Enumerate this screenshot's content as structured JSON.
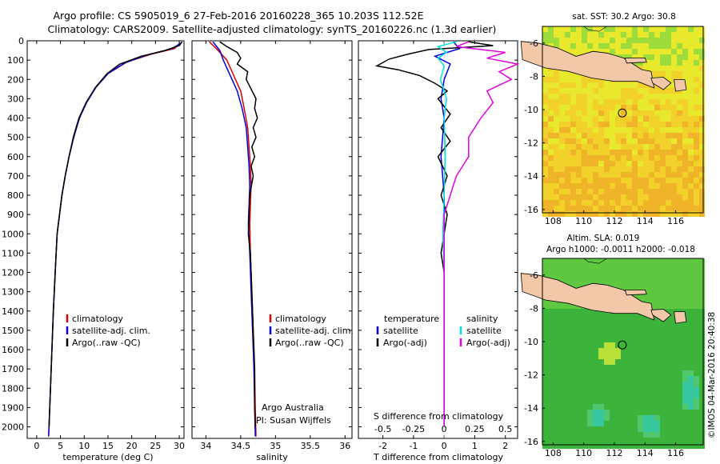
{
  "header": {
    "line1": "Argo profile: CS 5905019_6 27-Feb-2016 20160228_365 10.203S 112.52E",
    "line2": "Climatology: CARS2009. Satellite-adjusted climatology: synTS_20160226.nc (1.3d earlier)"
  },
  "side_credit": "©IMOS 04-Mar-2016 20:40:38",
  "colors": {
    "climatology": "#e00000",
    "satellite": "#0000e0",
    "argo": "#000000",
    "salinity_sat": "#00e0e0",
    "salinity_argo": "#e000e0",
    "land": "#f2c8a8"
  },
  "chart_data": [
    {
      "type": "line",
      "name": "temperature-profile",
      "xlabel": "temperature (deg C)",
      "ylabel": "",
      "xlim": [
        -2,
        31
      ],
      "ylim": [
        2060,
        0
      ],
      "xticks": [
        "0",
        "5",
        "10",
        "15",
        "20",
        "25",
        "30"
      ],
      "yticks": [
        "0",
        "100",
        "200",
        "300",
        "400",
        "500",
        "600",
        "700",
        "800",
        "900",
        "1000",
        "1100",
        "1200",
        "1300",
        "1400",
        "1500",
        "1600",
        "1700",
        "1800",
        "1900",
        "2000"
      ],
      "legend": [
        "climatology",
        "satellite-adj. clim.",
        "Argo(..raw -QC)"
      ],
      "series": [
        {
          "name": "climatology",
          "color": "#e00000",
          "points": [
            [
              30.2,
              10
            ],
            [
              29,
              40
            ],
            [
              24,
              70
            ],
            [
              19,
              110
            ],
            [
              15,
              170
            ],
            [
              12.5,
              240
            ],
            [
              10.5,
              320
            ],
            [
              9,
              400
            ],
            [
              7.8,
              500
            ],
            [
              6.8,
              600
            ],
            [
              6,
              700
            ],
            [
              5.3,
              800
            ],
            [
              4.8,
              900
            ],
            [
              4.3,
              1000
            ],
            [
              3.9,
              1200
            ],
            [
              3.5,
              1400
            ],
            [
              3.2,
              1600
            ],
            [
              2.9,
              1800
            ],
            [
              2.6,
              2000
            ],
            [
              2.5,
              2050
            ]
          ]
        },
        {
          "name": "satellite-adj. clim.",
          "color": "#0000e0",
          "points": [
            [
              30.5,
              10
            ],
            [
              28.5,
              40
            ],
            [
              23,
              75
            ],
            [
              18.5,
              115
            ],
            [
              15,
              170
            ],
            [
              12.5,
              240
            ],
            [
              10.5,
              320
            ],
            [
              9,
              400
            ],
            [
              7.8,
              500
            ],
            [
              6.8,
              600
            ],
            [
              6,
              700
            ],
            [
              5.3,
              800
            ],
            [
              4.8,
              900
            ],
            [
              4.3,
              1000
            ],
            [
              3.9,
              1200
            ],
            [
              3.5,
              1400
            ],
            [
              3.2,
              1600
            ],
            [
              2.9,
              1800
            ],
            [
              2.6,
              2000
            ],
            [
              2.5,
              2050
            ]
          ]
        },
        {
          "name": "Argo(..raw -QC)",
          "color": "#000000",
          "points": [
            [
              30.6,
              5
            ],
            [
              30,
              25
            ],
            [
              27,
              50
            ],
            [
              22,
              80
            ],
            [
              17.5,
              120
            ],
            [
              14.8,
              170
            ],
            [
              12.4,
              240
            ],
            [
              10.4,
              320
            ],
            [
              8.9,
              400
            ],
            [
              7.7,
              500
            ],
            [
              6.8,
              600
            ],
            [
              6,
              700
            ],
            [
              5.3,
              800
            ],
            [
              4.8,
              900
            ],
            [
              4.3,
              1000
            ],
            [
              3.9,
              1200
            ],
            [
              3.5,
              1400
            ],
            [
              3.2,
              1600
            ],
            [
              2.9,
              1800
            ],
            [
              2.6,
              2000
            ]
          ]
        }
      ]
    },
    {
      "type": "line",
      "name": "salinity-profile",
      "xlabel": "salinity",
      "xlim": [
        33.8,
        36.1
      ],
      "ylim": [
        2060,
        0
      ],
      "xticks": [
        "34",
        "34.5",
        "35",
        "35.5",
        "36"
      ],
      "legend": [
        "climatology",
        "satellite-adj. clim.",
        "Argo(..raw -QC)"
      ],
      "annotation": [
        "Argo Australia",
        "PI: Susan Wijffels"
      ],
      "series": [
        {
          "name": "climatology",
          "color": "#e00000",
          "points": [
            [
              34.05,
              5
            ],
            [
              34.15,
              40
            ],
            [
              34.3,
              100
            ],
            [
              34.4,
              180
            ],
            [
              34.5,
              260
            ],
            [
              34.55,
              350
            ],
            [
              34.6,
              450
            ],
            [
              34.62,
              550
            ],
            [
              34.64,
              650
            ],
            [
              34.65,
              750
            ],
            [
              34.64,
              850
            ],
            [
              34.63,
              950
            ],
            [
              34.64,
              1100
            ],
            [
              34.66,
              1300
            ],
            [
              34.68,
              1500
            ],
            [
              34.7,
              1700
            ],
            [
              34.71,
              1900
            ],
            [
              34.72,
              2050
            ]
          ]
        },
        {
          "name": "satellite-adj. clim.",
          "color": "#0000e0",
          "points": [
            [
              34.1,
              5
            ],
            [
              34.2,
              50
            ],
            [
              34.25,
              100
            ],
            [
              34.35,
              180
            ],
            [
              34.45,
              260
            ],
            [
              34.52,
              350
            ],
            [
              34.58,
              450
            ],
            [
              34.6,
              550
            ],
            [
              34.62,
              650
            ],
            [
              34.63,
              750
            ],
            [
              34.62,
              850
            ],
            [
              34.61,
              950
            ],
            [
              34.63,
              1100
            ],
            [
              34.65,
              1300
            ],
            [
              34.67,
              1500
            ],
            [
              34.69,
              1700
            ],
            [
              34.7,
              1900
            ],
            [
              34.71,
              2050
            ]
          ]
        },
        {
          "name": "Argo(..raw -QC)",
          "color": "#000000",
          "points": [
            [
              34.2,
              5
            ],
            [
              34.3,
              30
            ],
            [
              34.45,
              60
            ],
            [
              34.5,
              90
            ],
            [
              34.45,
              120
            ],
            [
              34.6,
              160
            ],
            [
              34.58,
              200
            ],
            [
              34.65,
              250
            ],
            [
              34.72,
              300
            ],
            [
              34.7,
              350
            ],
            [
              34.74,
              400
            ],
            [
              34.68,
              450
            ],
            [
              34.72,
              500
            ],
            [
              34.66,
              550
            ],
            [
              34.7,
              600
            ],
            [
              34.65,
              650
            ],
            [
              34.68,
              700
            ],
            [
              34.63,
              800
            ],
            [
              34.62,
              900
            ],
            [
              34.61,
              1000
            ],
            [
              34.64,
              1100
            ],
            [
              34.66,
              1300
            ],
            [
              34.68,
              1500
            ],
            [
              34.7,
              1700
            ],
            [
              34.7,
              1900
            ],
            [
              34.71,
              2000
            ]
          ]
        }
      ]
    },
    {
      "type": "line",
      "name": "difference-profile",
      "xlabel": "T difference from climatology",
      "xlabel_top": "S difference from climatology",
      "xlim": [
        -2.8,
        2.4
      ],
      "ylim": [
        2060,
        0
      ],
      "xticks": [
        "-2",
        "-1",
        "0",
        "1",
        "2"
      ],
      "xticks_s": [
        "-0.5",
        "-0.25",
        "0",
        "0.25",
        "0.5"
      ],
      "legend_t_title": "temperature",
      "legend_s_title": "salinity",
      "legend_t": [
        "satellite",
        "Argo(-adj)"
      ],
      "legend_s": [
        "satellite",
        "Argo(-adj)"
      ],
      "series": [
        {
          "name": "T satellite",
          "color": "#0000e0",
          "points": [
            [
              0.3,
              5
            ],
            [
              0.5,
              40
            ],
            [
              -0.3,
              80
            ],
            [
              0.2,
              120
            ],
            [
              0,
              200
            ],
            [
              -0.1,
              300
            ],
            [
              0,
              400
            ],
            [
              -0.1,
              600
            ],
            [
              0,
              800
            ],
            [
              0,
              1000
            ],
            [
              0,
              1200
            ],
            [
              0,
              1400
            ],
            [
              0,
              1600
            ],
            [
              0,
              1800
            ],
            [
              0,
              2000
            ]
          ]
        },
        {
          "name": "T Argo(-adj)",
          "color": "#000000",
          "points": [
            [
              0.8,
              5
            ],
            [
              1.6,
              25
            ],
            [
              -0.5,
              45
            ],
            [
              -1.2,
              70
            ],
            [
              -1.8,
              95
            ],
            [
              -2.2,
              130
            ],
            [
              -1.5,
              150
            ],
            [
              -0.8,
              180
            ],
            [
              -0.3,
              220
            ],
            [
              0.1,
              260
            ],
            [
              -0.2,
              300
            ],
            [
              0.2,
              380
            ],
            [
              -0.1,
              450
            ],
            [
              0.2,
              520
            ],
            [
              -0.2,
              600
            ],
            [
              0.1,
              700
            ],
            [
              -0.1,
              800
            ],
            [
              0.1,
              900
            ],
            [
              0,
              1000
            ],
            [
              -0.1,
              1100
            ],
            [
              0,
              1200
            ],
            [
              0,
              1400
            ],
            [
              0,
              1600
            ],
            [
              0,
              1800
            ],
            [
              0,
              2000
            ]
          ]
        },
        {
          "name": "S satellite",
          "color": "#00e0e0",
          "points": [
            [
              0.1,
              5
            ],
            [
              -0.05,
              30
            ],
            [
              0.02,
              60
            ],
            [
              -0.05,
              90
            ],
            [
              0,
              130
            ],
            [
              -0.03,
              200
            ],
            [
              0.02,
              300
            ],
            [
              0,
              400
            ],
            [
              0.01,
              600
            ],
            [
              0,
              800
            ],
            [
              -0.01,
              1000
            ],
            [
              0,
              1200
            ],
            [
              0,
              1400
            ],
            [
              0,
              1600
            ],
            [
              0,
              1800
            ],
            [
              0,
              2000
            ]
          ]
        },
        {
          "name": "S Argo(-adj)",
          "color": "#e000e0",
          "points": [
            [
              0.2,
              5
            ],
            [
              0.1,
              30
            ],
            [
              0.5,
              60
            ],
            [
              0.35,
              90
            ],
            [
              0.6,
              120
            ],
            [
              0.45,
              160
            ],
            [
              0.55,
              200
            ],
            [
              0.35,
              260
            ],
            [
              0.4,
              320
            ],
            [
              0.3,
              400
            ],
            [
              0.2,
              500
            ],
            [
              0.2,
              600
            ],
            [
              0.1,
              700
            ],
            [
              0.05,
              800
            ],
            [
              0,
              900
            ],
            [
              0,
              1000
            ],
            [
              0,
              1200
            ],
            [
              0,
              1400
            ],
            [
              0,
              1600
            ],
            [
              0,
              1800
            ],
            [
              0,
              2000
            ]
          ]
        }
      ]
    },
    {
      "type": "heatmap",
      "name": "sst-map",
      "title": "sat. SST: 30.2  Argo: 30.8",
      "xticks": [
        "108",
        "110",
        "112",
        "114",
        "116"
      ],
      "yticks": [
        "-6",
        "-8",
        "-10",
        "-12",
        "-14",
        "-16"
      ],
      "xlim": [
        107.3,
        117.8
      ],
      "ylim": [
        -16.2,
        -5
      ],
      "float_position": [
        112.52,
        -10.203
      ]
    },
    {
      "type": "heatmap",
      "name": "sla-map",
      "title": "Altim. SLA: 0.019",
      "subtitle": "Argo h1000: -0.0011  h2000: -0.018",
      "xticks": [
        "108",
        "110",
        "112",
        "114",
        "116"
      ],
      "yticks": [
        "-6",
        "-8",
        "-10",
        "-12",
        "-14",
        "-16"
      ],
      "xlim": [
        107.3,
        117.8
      ],
      "ylim": [
        -16.2,
        -5
      ],
      "float_position": [
        112.52,
        -10.203
      ]
    }
  ]
}
